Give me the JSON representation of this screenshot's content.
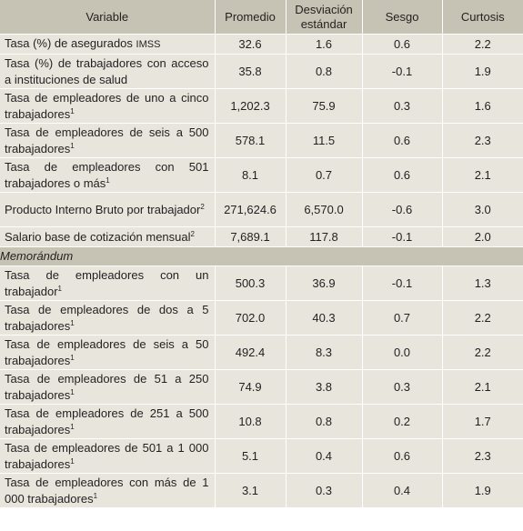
{
  "headers": {
    "variable": "Variable",
    "promedio": "Promedio",
    "desviacion": "Desviación estándar",
    "sesgo": "Sesgo",
    "curtosis": "Curtosis"
  },
  "rows": [
    {
      "label": "Tasa (%) de asegurados",
      "label_suffix": "IMSS",
      "sup": "",
      "promedio": "32.6",
      "desviacion": "1.6",
      "sesgo": "0.6",
      "curtosis": "2.2"
    },
    {
      "label": "Tasa (%) de trabajadores con acceso a instituciones de salud",
      "label_suffix": "",
      "sup": "",
      "promedio": "35.8",
      "desviacion": "0.8",
      "sesgo": "-0.1",
      "curtosis": "1.9"
    },
    {
      "label": "Tasa de empleadores de uno a cinco trabajadores",
      "label_suffix": "",
      "sup": "1",
      "promedio": "1,202.3",
      "desviacion": "75.9",
      "sesgo": "0.3",
      "curtosis": "1.6"
    },
    {
      "label": "Tasa de empleadores de seis a 500 trabajadores",
      "label_suffix": "",
      "sup": "1",
      "promedio": "578.1",
      "desviacion": "11.5",
      "sesgo": "0.6",
      "curtosis": "2.3"
    },
    {
      "label": "Tasa de empleadores con 501 trabajadores o más",
      "label_suffix": "",
      "sup": "1",
      "promedio": "8.1",
      "desviacion": "0.7",
      "sesgo": "0.6",
      "curtosis": "2.1"
    },
    {
      "label": "Producto Interno Bruto por trabajador",
      "label_suffix": "",
      "sup": "2",
      "promedio": "271,624.6",
      "desviacion": "6,570.0",
      "sesgo": "-0.6",
      "curtosis": "3.0"
    },
    {
      "label": "Salario base de cotización mensual",
      "label_suffix": "",
      "sup": "2",
      "promedio": "7,689.1",
      "desviacion": "117.8",
      "sesgo": "-0.1",
      "curtosis": "2.0"
    }
  ],
  "memo_label": "Memorándum",
  "memo_rows": [
    {
      "label": "Tasa de empleadores con un trabajador",
      "sup": "1",
      "promedio": "500.3",
      "desviacion": "36.9",
      "sesgo": "-0.1",
      "curtosis": "1.3"
    },
    {
      "label": "Tasa de empleadores de dos a 5 trabajadores",
      "sup": "1",
      "promedio": "702.0",
      "desviacion": "40.3",
      "sesgo": "0.7",
      "curtosis": "2.2"
    },
    {
      "label": "Tasa de empleadores de seis a 50 trabajadores",
      "sup": "1",
      "promedio": "492.4",
      "desviacion": "8.3",
      "sesgo": "0.0",
      "curtosis": "2.2"
    },
    {
      "label": "Tasa de empleadores de 51 a 250 trabajadores",
      "sup": "1",
      "promedio": "74.9",
      "desviacion": "3.8",
      "sesgo": "0.3",
      "curtosis": "2.1"
    },
    {
      "label": "Tasa de empleadores de 251 a 500 trabajadores",
      "sup": "1",
      "promedio": "10.8",
      "desviacion": "0.8",
      "sesgo": "0.2",
      "curtosis": "1.7"
    },
    {
      "label": "Tasa de empleadores de 501 a 1 000 trabajadores",
      "sup": "1",
      "promedio": "5.1",
      "desviacion": "0.4",
      "sesgo": "0.6",
      "curtosis": "2.3"
    },
    {
      "label": "Tasa de empleadores con más de 1 000 trabajadores",
      "sup": "1",
      "promedio": "3.1",
      "desviacion": "0.3",
      "sesgo": "0.4",
      "curtosis": "1.9"
    }
  ],
  "colors": {
    "header_bg": "#c7c3b4",
    "body_bg": "#e7e5dc",
    "grid": "#ffffff",
    "text": "#231f20"
  }
}
